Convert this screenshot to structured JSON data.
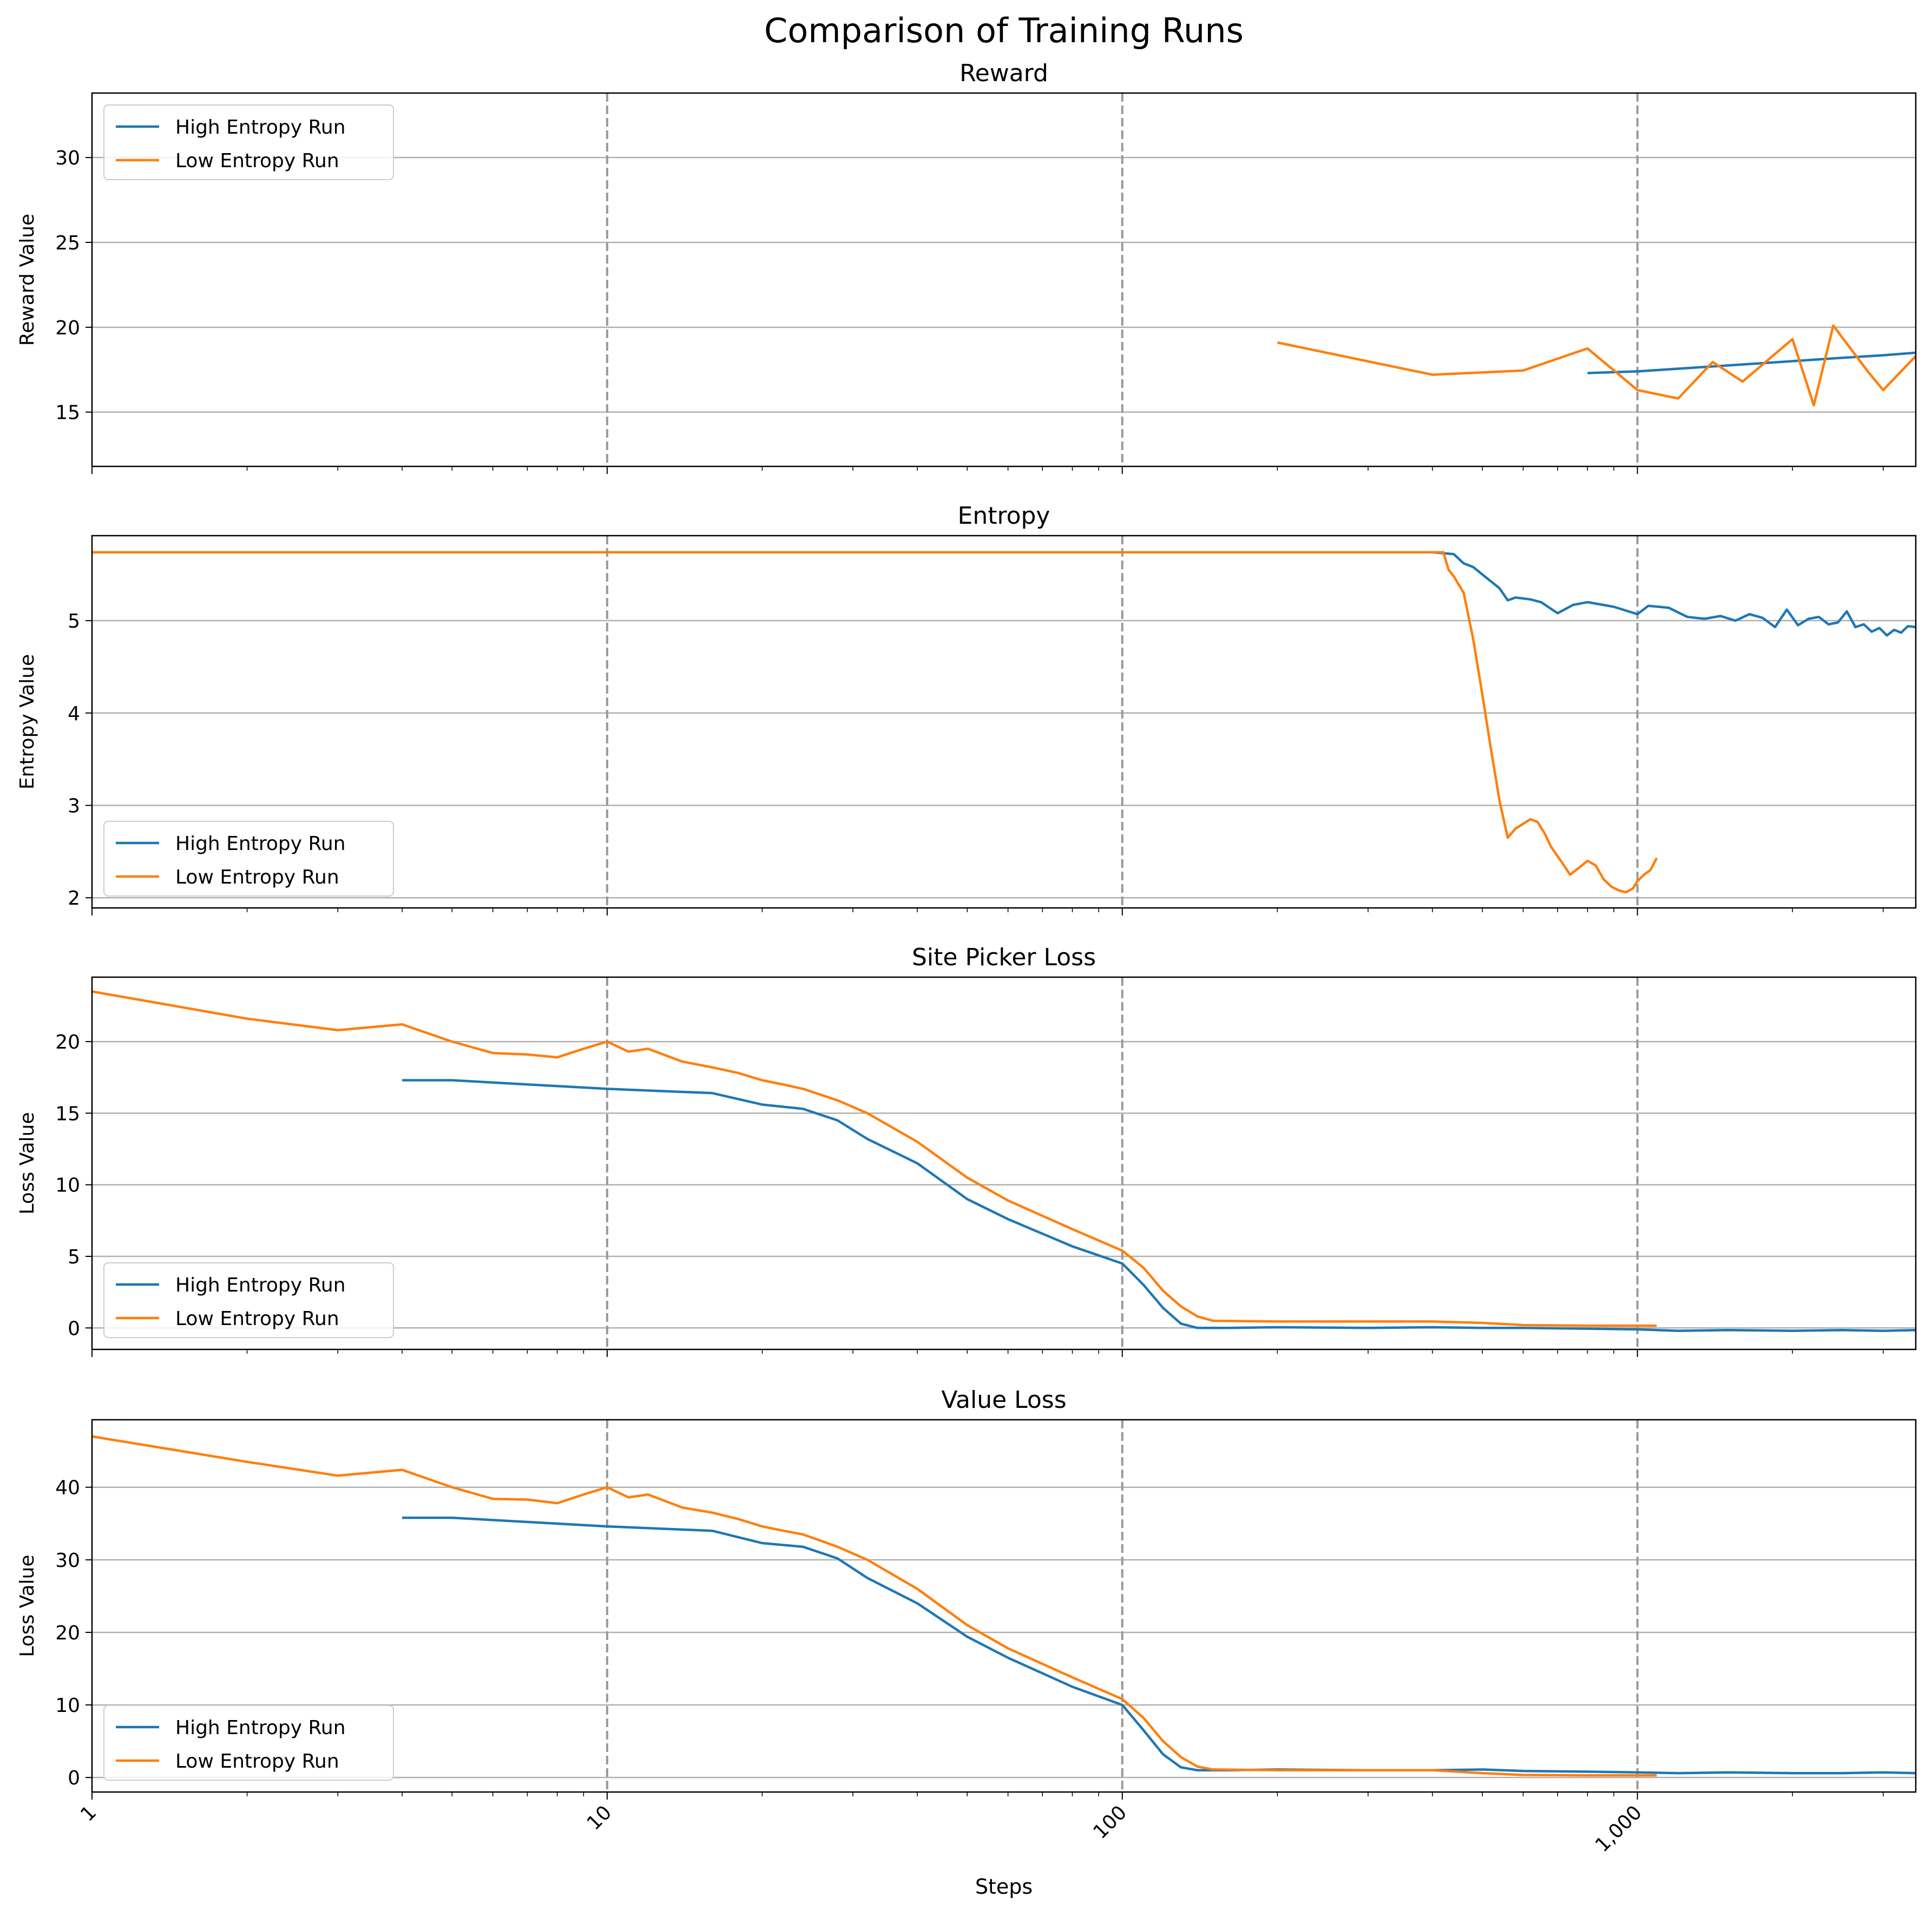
{
  "figure": {
    "suptitle": "Comparison of Training Runs",
    "xlabel": "Steps"
  },
  "colors": {
    "high": "#1f77b4",
    "low": "#ff7f0e",
    "grid": "#b0b0b0",
    "vline": "#999999"
  },
  "legend_labels": [
    "High Entropy Run",
    "Low Entropy Run"
  ],
  "chart_data": [
    {
      "type": "line",
      "title": "Reward",
      "ylabel": "Reward Value",
      "xscale": "log",
      "xlim": [
        1,
        3470
      ],
      "ylim": [
        11.8,
        33.8
      ],
      "yticks": [
        15,
        20,
        25,
        30
      ],
      "xticks": [
        1,
        10,
        100,
        1000
      ],
      "xtick_labels": [
        "1",
        "10",
        "100",
        "1,000"
      ],
      "vlines": [
        10,
        100,
        1000
      ],
      "grid": "y",
      "legend": "upper-left",
      "series": [
        {
          "name": "High Entropy Run",
          "x": [
            800,
            1000,
            1500,
            2000,
            2500,
            3000,
            3470
          ],
          "y": [
            17.3,
            17.4,
            17.75,
            18.0,
            18.2,
            18.35,
            18.5
          ]
        },
        {
          "name": "Low Entropy Run",
          "x": [
            200,
            400,
            600,
            800,
            1000,
            1200,
            1400,
            1600,
            2000,
            2200,
            2400,
            2800,
            3000,
            3470
          ],
          "y": [
            19.1,
            17.2,
            17.45,
            18.75,
            16.3,
            15.8,
            17.95,
            16.8,
            19.3,
            15.4,
            20.1,
            17.4,
            16.3,
            18.3
          ]
        }
      ]
    },
    {
      "type": "line",
      "title": "Entropy",
      "ylabel": "Entropy Value",
      "xscale": "log",
      "xlim": [
        1,
        3470
      ],
      "ylim": [
        1.89,
        5.92
      ],
      "yticks": [
        2,
        3,
        4,
        5
      ],
      "xticks": [
        1,
        10,
        100,
        1000
      ],
      "xtick_labels": [
        "1",
        "10",
        "100",
        "1,000"
      ],
      "vlines": [
        10,
        100,
        1000
      ],
      "grid": "y",
      "legend": "lower-left",
      "series": [
        {
          "name": "High Entropy Run",
          "x": [
            1,
            100,
            400,
            440,
            460,
            480,
            500,
            540,
            560,
            580,
            620,
            650,
            700,
            750,
            800,
            900,
            1000,
            1050,
            1150,
            1250,
            1350,
            1450,
            1550,
            1650,
            1750,
            1850,
            1950,
            2050,
            2150,
            2250,
            2350,
            2450,
            2550,
            2650,
            2750,
            2850,
            2950,
            3050,
            3150,
            3250,
            3350,
            3470
          ],
          "y": [
            5.74,
            5.74,
            5.74,
            5.72,
            5.62,
            5.58,
            5.5,
            5.35,
            5.22,
            5.25,
            5.23,
            5.2,
            5.08,
            5.17,
            5.2,
            5.15,
            5.07,
            5.16,
            5.14,
            5.04,
            5.02,
            5.05,
            5.0,
            5.07,
            5.03,
            4.93,
            5.12,
            4.95,
            5.02,
            5.04,
            4.96,
            4.98,
            5.1,
            4.93,
            4.96,
            4.88,
            4.92,
            4.84,
            4.9,
            4.87,
            4.94,
            4.93
          ]
        },
        {
          "name": "Low Entropy Run",
          "x": [
            1,
            100,
            420,
            430,
            440,
            460,
            480,
            500,
            520,
            540,
            560,
            580,
            600,
            620,
            640,
            660,
            680,
            700,
            720,
            740,
            760,
            780,
            800,
            830,
            860,
            890,
            920,
            950,
            980,
            1000,
            1030,
            1060,
            1090
          ],
          "y": [
            5.74,
            5.74,
            5.74,
            5.55,
            5.48,
            5.3,
            4.8,
            4.2,
            3.6,
            3.05,
            2.65,
            2.75,
            2.8,
            2.85,
            2.82,
            2.7,
            2.55,
            2.45,
            2.35,
            2.25,
            2.3,
            2.35,
            2.4,
            2.35,
            2.2,
            2.12,
            2.08,
            2.06,
            2.1,
            2.18,
            2.25,
            2.3,
            2.43
          ]
        }
      ]
    },
    {
      "type": "line",
      "title": "Site Picker Loss",
      "ylabel": "Loss Value",
      "xscale": "log",
      "xlim": [
        1,
        3470
      ],
      "ylim": [
        -1.5,
        24.5
      ],
      "yticks": [
        0,
        5,
        10,
        15,
        20
      ],
      "xticks": [
        1,
        10,
        100,
        1000
      ],
      "xtick_labels": [
        "1",
        "10",
        "100",
        "1,000"
      ],
      "vlines": [
        10,
        100,
        1000
      ],
      "grid": "y",
      "legend": "lower-left",
      "series": [
        {
          "name": "High Entropy Run",
          "x": [
            4,
            5,
            10,
            16,
            20,
            24,
            28,
            32,
            40,
            50,
            60,
            80,
            100,
            110,
            120,
            130,
            140,
            160,
            200,
            300,
            400,
            500,
            600,
            800,
            1000,
            1200,
            1500,
            2000,
            2500,
            3000,
            3470
          ],
          "y": [
            17.3,
            17.3,
            16.7,
            16.4,
            15.6,
            15.3,
            14.5,
            13.2,
            11.5,
            9.0,
            7.6,
            5.7,
            4.5,
            3.0,
            1.4,
            0.3,
            0.0,
            0.0,
            0.05,
            0.0,
            0.05,
            0.0,
            0.0,
            -0.05,
            -0.1,
            -0.2,
            -0.15,
            -0.2,
            -0.15,
            -0.2,
            -0.15
          ]
        },
        {
          "name": "Low Entropy Run",
          "x": [
            1,
            2,
            3,
            4,
            5,
            6,
            7,
            8,
            9,
            10,
            11,
            12,
            14,
            16,
            18,
            20,
            22,
            24,
            28,
            32,
            40,
            50,
            60,
            80,
            100,
            110,
            120,
            130,
            140,
            150,
            200,
            300,
            400,
            500,
            600,
            800,
            1000,
            1090
          ],
          "y": [
            23.5,
            21.6,
            20.8,
            21.2,
            20.0,
            19.2,
            19.1,
            18.9,
            19.5,
            20.0,
            19.3,
            19.5,
            18.6,
            18.2,
            17.8,
            17.3,
            17.0,
            16.7,
            15.9,
            15.0,
            13.0,
            10.5,
            8.9,
            6.9,
            5.4,
            4.2,
            2.6,
            1.5,
            0.8,
            0.5,
            0.45,
            0.45,
            0.45,
            0.35,
            0.2,
            0.15,
            0.15,
            0.15
          ]
        }
      ]
    },
    {
      "type": "line",
      "title": "Value Loss",
      "ylabel": "Loss Value",
      "xscale": "log",
      "xlim": [
        1,
        3470
      ],
      "ylim": [
        -2,
        49.3
      ],
      "yticks": [
        0,
        10,
        20,
        30,
        40
      ],
      "xticks": [
        1,
        10,
        100,
        1000
      ],
      "xtick_labels": [
        "1",
        "10",
        "100",
        "1,000"
      ],
      "vlines": [
        10,
        100,
        1000
      ],
      "grid": "y",
      "legend": "lower-left",
      "series": [
        {
          "name": "High Entropy Run",
          "x": [
            4,
            5,
            10,
            16,
            20,
            24,
            28,
            32,
            40,
            50,
            60,
            80,
            100,
            110,
            120,
            130,
            140,
            160,
            200,
            300,
            400,
            500,
            600,
            800,
            1000,
            1200,
            1500,
            2000,
            2500,
            3000,
            3470
          ],
          "y": [
            35.8,
            35.8,
            34.6,
            34.0,
            32.3,
            31.8,
            30.2,
            27.5,
            24.0,
            19.4,
            16.5,
            12.5,
            10.0,
            6.5,
            3.2,
            1.4,
            1.0,
            1.0,
            1.1,
            1.0,
            1.0,
            1.1,
            0.9,
            0.8,
            0.7,
            0.6,
            0.7,
            0.6,
            0.6,
            0.7,
            0.6
          ]
        },
        {
          "name": "Low Entropy Run",
          "x": [
            1,
            2,
            3,
            4,
            5,
            6,
            7,
            8,
            9,
            10,
            11,
            12,
            14,
            16,
            18,
            20,
            22,
            24,
            28,
            32,
            40,
            50,
            60,
            80,
            100,
            110,
            120,
            130,
            140,
            150,
            200,
            300,
            400,
            500,
            600,
            800,
            1000,
            1090
          ],
          "y": [
            47.0,
            43.5,
            41.6,
            42.4,
            40.0,
            38.4,
            38.3,
            37.8,
            39.0,
            40.0,
            38.6,
            39.0,
            37.2,
            36.5,
            35.6,
            34.6,
            34.0,
            33.5,
            31.8,
            30.0,
            26.0,
            21.0,
            17.8,
            13.8,
            10.8,
            8.2,
            5.0,
            2.8,
            1.5,
            1.1,
            1.0,
            1.0,
            1.0,
            0.6,
            0.35,
            0.3,
            0.3,
            0.3
          ]
        }
      ]
    }
  ]
}
